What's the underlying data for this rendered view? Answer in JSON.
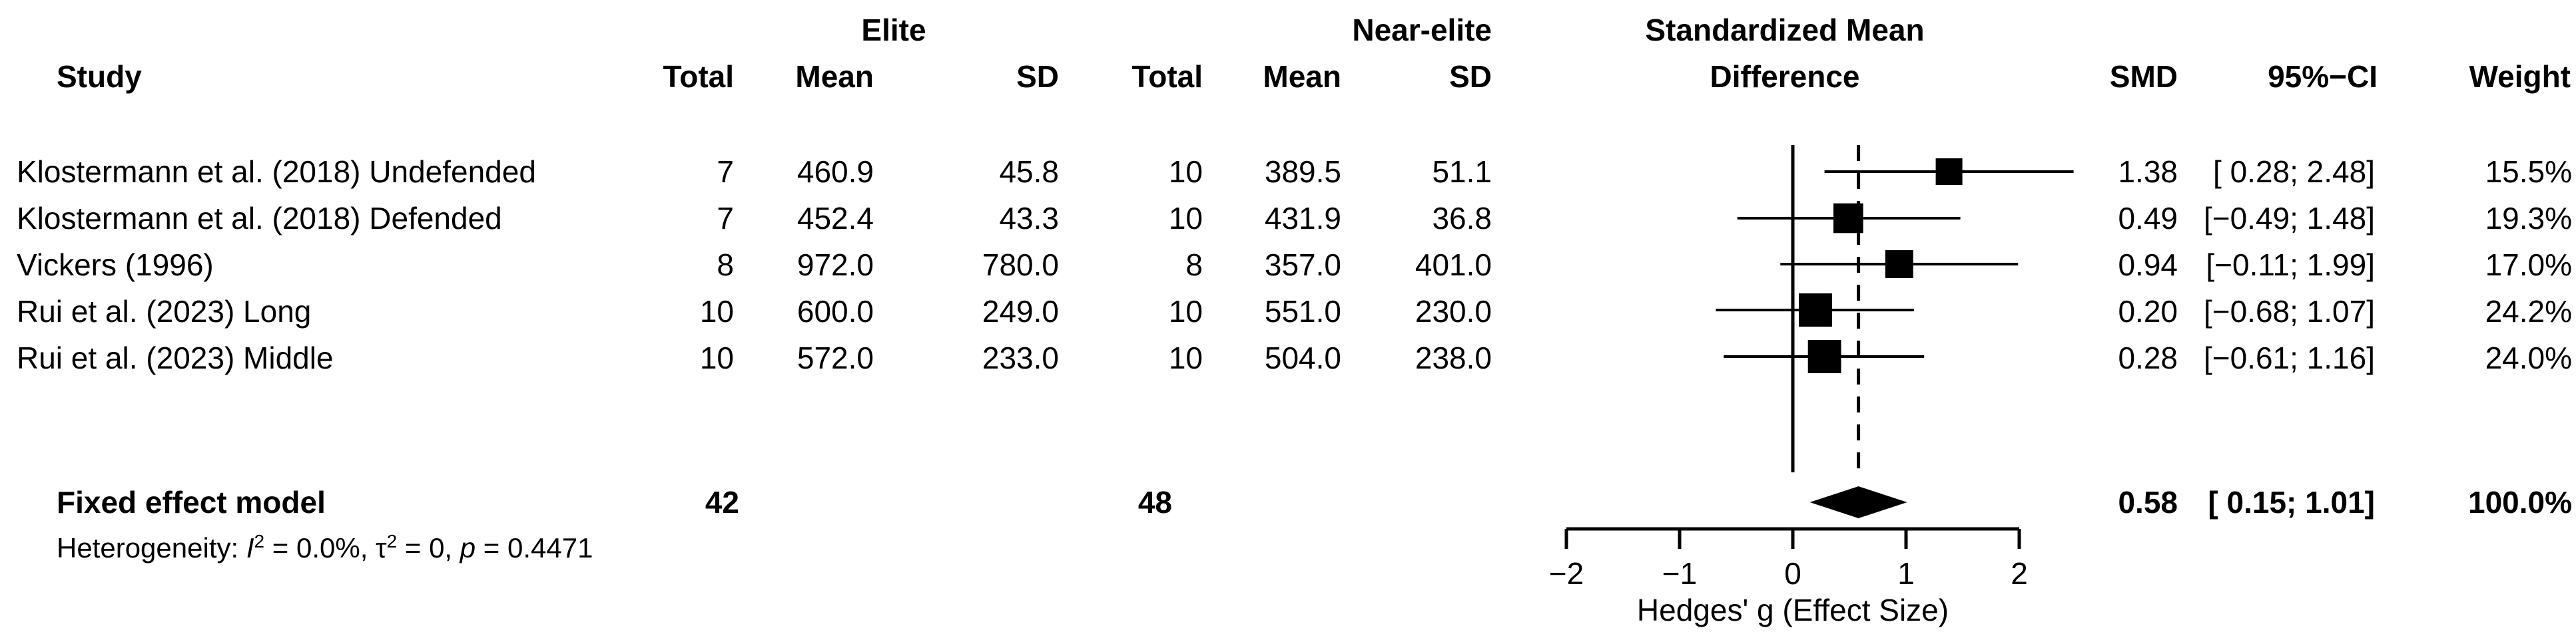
{
  "headers": {
    "study": "Study",
    "group1": "Elite",
    "group2": "Near-elite",
    "total": "Total",
    "mean": "Mean",
    "sd": "SD",
    "smd_line1": "Standardized Mean",
    "smd_line2": "Difference",
    "smd": "SMD",
    "ci": "95%−CI",
    "weight": "Weight"
  },
  "studies": [
    {
      "name": "Klostermann et al. (2018) Undefended",
      "e_total": "7",
      "e_mean": "460.9",
      "e_sd": "45.8",
      "n_total": "10",
      "n_mean": "389.5",
      "n_sd": "51.1",
      "smd": "1.38",
      "ci": "[ 0.28; 2.48]",
      "weight": "15.5%"
    },
    {
      "name": "Klostermann et al. (2018) Defended",
      "e_total": "7",
      "e_mean": "452.4",
      "e_sd": "43.3",
      "n_total": "10",
      "n_mean": "431.9",
      "n_sd": "36.8",
      "smd": "0.49",
      "ci": "[−0.49; 1.48]",
      "weight": "19.3%"
    },
    {
      "name": "Vickers (1996)",
      "e_total": "8",
      "e_mean": "972.0",
      "e_sd": "780.0",
      "n_total": "8",
      "n_mean": "357.0",
      "n_sd": "401.0",
      "smd": "0.94",
      "ci": "[−0.11; 1.99]",
      "weight": "17.0%"
    },
    {
      "name": "Rui et al. (2023) Long",
      "e_total": "10",
      "e_mean": "600.0",
      "e_sd": "249.0",
      "n_total": "10",
      "n_mean": "551.0",
      "n_sd": "230.0",
      "smd": "0.20",
      "ci": "[−0.68; 1.07]",
      "weight": "24.2%"
    },
    {
      "name": "Rui et al. (2023) Middle",
      "e_total": "10",
      "e_mean": "572.0",
      "e_sd": "233.0",
      "n_total": "10",
      "n_mean": "504.0",
      "n_sd": "238.0",
      "smd": "0.28",
      "ci": "[−0.61; 1.16]",
      "weight": "24.0%"
    }
  ],
  "summary": {
    "label": "Fixed effect model",
    "e_total": "42",
    "n_total": "48",
    "smd": "0.58",
    "ci": "[ 0.15; 1.01]",
    "weight": "100.0%"
  },
  "heterogeneity": {
    "prefix": "Heterogeneity: ",
    "i2_symbol": "I",
    "i2_exp": "2",
    "i2_value": " = 0.0%, ",
    "tau_symbol": "τ",
    "tau_exp": "2",
    "tau_value": " = 0, ",
    "p_symbol": "p",
    "p_value": " = 0.4471"
  },
  "chart_data": {
    "type": "scatter",
    "subtype": "forest",
    "xlabel": "Hedges' g (Effect Size)",
    "xlim": [
      -2,
      2
    ],
    "xticks": [
      -2,
      -1,
      0,
      1,
      2
    ],
    "xtick_labels": [
      "−2",
      "−1",
      "0",
      "1",
      "2"
    ],
    "reference_line": 0,
    "pooled_line": 0.58,
    "series": [
      {
        "points": [
          {
            "study": "Klostermann et al. (2018) Undefended",
            "smd": 1.38,
            "lower": 0.28,
            "upper": 2.48,
            "weight": 15.5
          },
          {
            "study": "Klostermann et al. (2018) Defended",
            "smd": 0.49,
            "lower": -0.49,
            "upper": 1.48,
            "weight": 19.3
          },
          {
            "study": "Vickers (1996)",
            "smd": 0.94,
            "lower": -0.11,
            "upper": 1.99,
            "weight": 17.0
          },
          {
            "study": "Rui et al. (2023) Long",
            "smd": 0.2,
            "lower": -0.68,
            "upper": 1.07,
            "weight": 24.2
          },
          {
            "study": "Rui et al. (2023) Middle",
            "smd": 0.28,
            "lower": -0.61,
            "upper": 1.16,
            "weight": 24.0
          }
        ]
      }
    ],
    "pooled": {
      "smd": 0.58,
      "lower": 0.15,
      "upper": 1.01
    },
    "colors": {
      "marks": "#000000"
    }
  }
}
